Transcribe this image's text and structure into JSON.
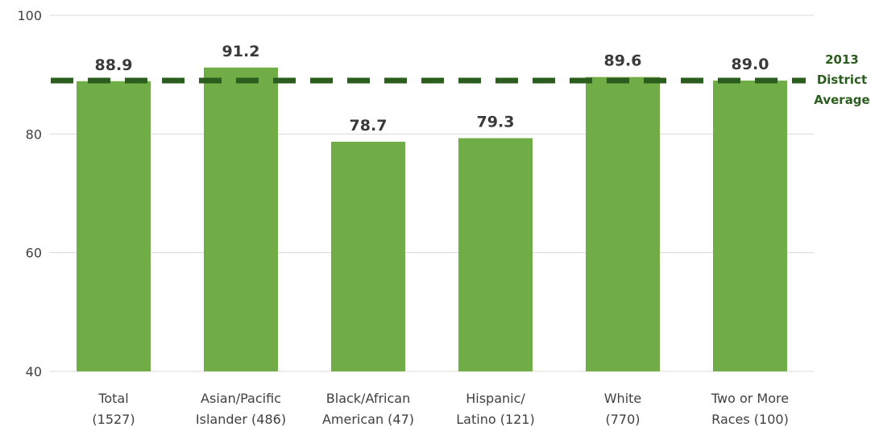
{
  "chart_data": {
    "type": "bar",
    "categories": [
      [
        "Total",
        "(1527)"
      ],
      [
        "Asian/Pacific",
        "Islander (486)"
      ],
      [
        "Black/African",
        "American (47)"
      ],
      [
        "Hispanic/",
        "Latino (121)"
      ],
      [
        "White",
        "(770)"
      ],
      [
        "Two or More",
        "Races (100)"
      ]
    ],
    "values": [
      88.9,
      91.2,
      78.7,
      79.3,
      89.6,
      89.0
    ],
    "data_labels": [
      "88.9",
      "91.2",
      "78.7",
      "79.3",
      "89.6",
      "89.0"
    ],
    "ylim": [
      40,
      100
    ],
    "yticks": [
      40,
      60,
      80,
      100
    ],
    "grid": true,
    "reference_line": {
      "value": 89.0,
      "label": [
        "2013",
        "District",
        "Average"
      ],
      "style": "dashed"
    },
    "colors": {
      "bar": "#70ad47",
      "reference_line": "#2b5d1e",
      "grid": "#d9d9d9"
    }
  }
}
